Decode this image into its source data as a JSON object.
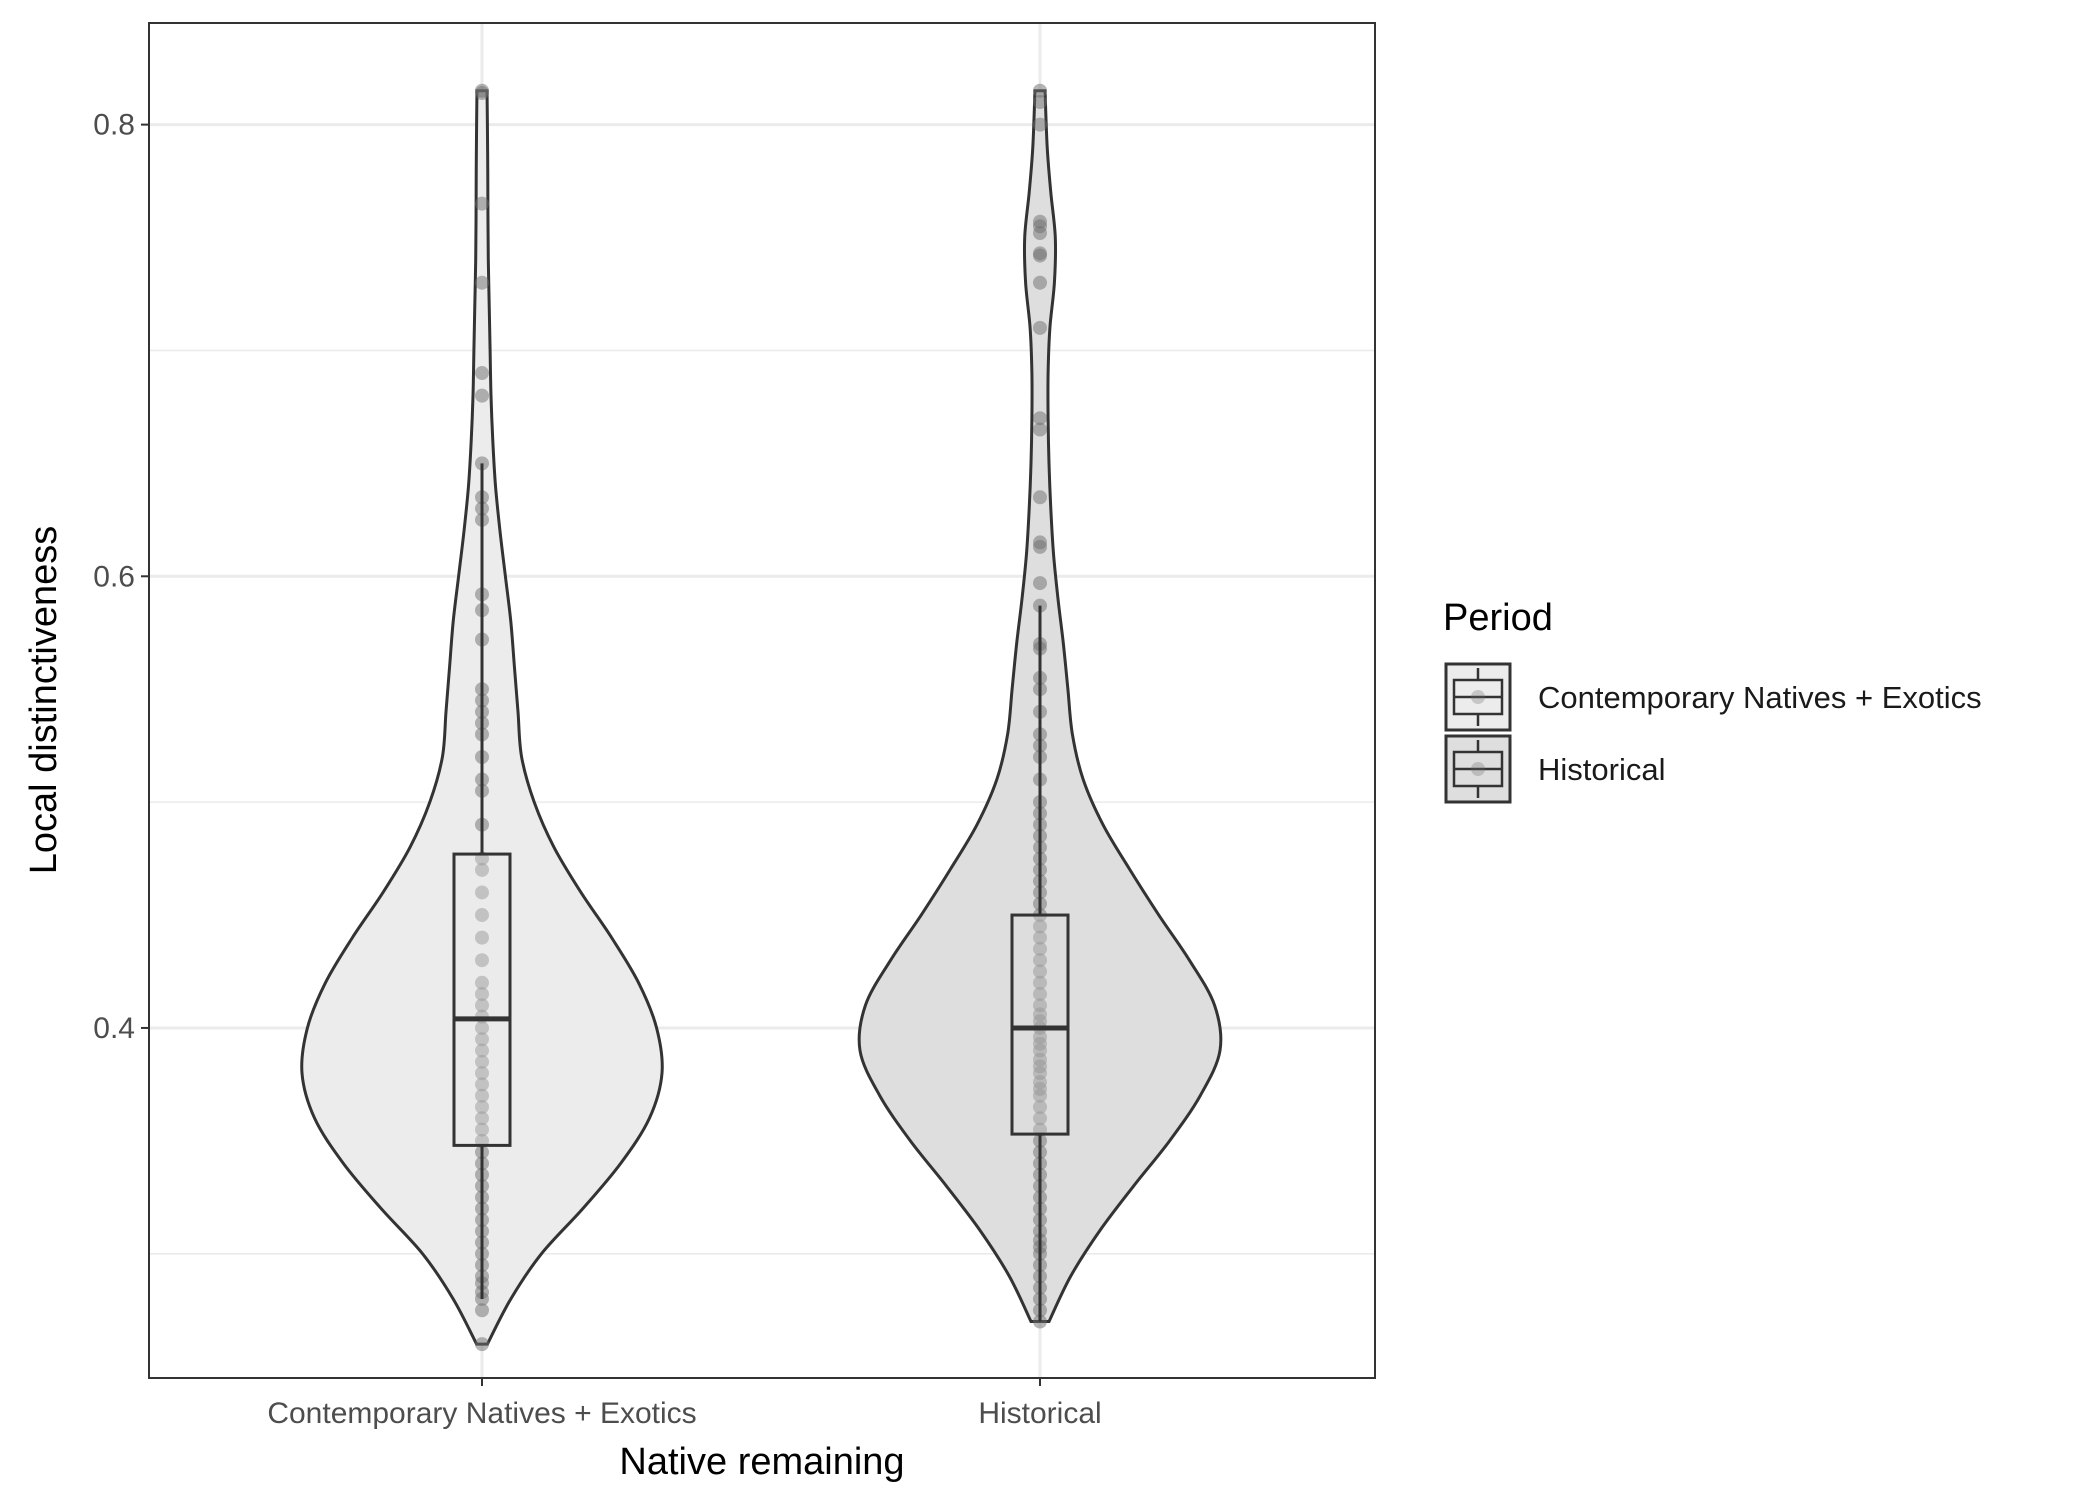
{
  "chart_data": {
    "type": "violin",
    "xlabel": "Native remaining",
    "ylabel": "Local distinctiveness",
    "ylim": [
      0.245,
      0.845
    ],
    "yticks": [
      0.4,
      0.6,
      0.8
    ],
    "ytick_labels": [
      "0.4",
      "0.6",
      "0.8"
    ],
    "grid": true,
    "categories": [
      "Contemporary Natives + Exotics",
      "Historical"
    ],
    "legend": {
      "title": "Period",
      "position": "right",
      "entries": [
        {
          "label": "Contemporary Natives + Exotics",
          "fill": "#ececec"
        },
        {
          "label": "Historical",
          "fill": "#dedede"
        }
      ]
    },
    "colors": {
      "violin_outline": "#333333",
      "points": "#6e6e6e",
      "panel_border": "#333333",
      "grid": "#ebebeb"
    },
    "series": [
      {
        "category": "Contemporary Natives + Exotics",
        "fill": "#ececec",
        "violin_profile": [
          [
            0.26,
            0.03
          ],
          [
            0.28,
            0.16
          ],
          [
            0.3,
            0.33
          ],
          [
            0.32,
            0.56
          ],
          [
            0.34,
            0.77
          ],
          [
            0.36,
            0.93
          ],
          [
            0.38,
            1.0
          ],
          [
            0.4,
            0.97
          ],
          [
            0.42,
            0.87
          ],
          [
            0.44,
            0.72
          ],
          [
            0.46,
            0.55
          ],
          [
            0.48,
            0.4
          ],
          [
            0.5,
            0.29
          ],
          [
            0.52,
            0.22
          ],
          [
            0.54,
            0.2
          ],
          [
            0.56,
            0.18
          ],
          [
            0.58,
            0.16
          ],
          [
            0.6,
            0.13
          ],
          [
            0.62,
            0.1
          ],
          [
            0.64,
            0.075
          ],
          [
            0.66,
            0.06
          ],
          [
            0.68,
            0.05
          ],
          [
            0.7,
            0.045
          ],
          [
            0.72,
            0.04
          ],
          [
            0.74,
            0.035
          ],
          [
            0.76,
            0.033
          ],
          [
            0.78,
            0.032
          ],
          [
            0.8,
            0.03
          ],
          [
            0.815,
            0.028
          ]
        ],
        "box": {
          "min": 0.28,
          "q1": 0.348,
          "median": 0.404,
          "q3": 0.477,
          "max": 0.65
        },
        "points": [
          0.26,
          0.275,
          0.28,
          0.283,
          0.287,
          0.29,
          0.295,
          0.3,
          0.305,
          0.31,
          0.315,
          0.32,
          0.325,
          0.33,
          0.335,
          0.34,
          0.345,
          0.35,
          0.355,
          0.36,
          0.365,
          0.37,
          0.375,
          0.38,
          0.385,
          0.39,
          0.395,
          0.4,
          0.405,
          0.41,
          0.415,
          0.42,
          0.43,
          0.44,
          0.45,
          0.46,
          0.47,
          0.475,
          0.49,
          0.505,
          0.51,
          0.52,
          0.53,
          0.535,
          0.54,
          0.545,
          0.55,
          0.572,
          0.585,
          0.592,
          0.625,
          0.63,
          0.635,
          0.65,
          0.68,
          0.69,
          0.73,
          0.765,
          0.814,
          0.815
        ]
      },
      {
        "category": "Historical",
        "fill": "#dedede",
        "violin_profile": [
          [
            0.27,
            0.05
          ],
          [
            0.29,
            0.17
          ],
          [
            0.31,
            0.33
          ],
          [
            0.33,
            0.52
          ],
          [
            0.35,
            0.72
          ],
          [
            0.37,
            0.89
          ],
          [
            0.39,
            1.0
          ],
          [
            0.41,
            0.97
          ],
          [
            0.43,
            0.83
          ],
          [
            0.45,
            0.66
          ],
          [
            0.47,
            0.5
          ],
          [
            0.49,
            0.35
          ],
          [
            0.51,
            0.24
          ],
          [
            0.53,
            0.18
          ],
          [
            0.55,
            0.155
          ],
          [
            0.57,
            0.13
          ],
          [
            0.59,
            0.1
          ],
          [
            0.61,
            0.075
          ],
          [
            0.63,
            0.06
          ],
          [
            0.65,
            0.05
          ],
          [
            0.67,
            0.045
          ],
          [
            0.69,
            0.045
          ],
          [
            0.71,
            0.055
          ],
          [
            0.73,
            0.08
          ],
          [
            0.75,
            0.085
          ],
          [
            0.77,
            0.06
          ],
          [
            0.79,
            0.04
          ],
          [
            0.815,
            0.028
          ]
        ],
        "box": {
          "min": 0.27,
          "q1": 0.353,
          "median": 0.4,
          "q3": 0.45,
          "max": 0.587
        },
        "points": [
          0.27,
          0.275,
          0.28,
          0.285,
          0.29,
          0.295,
          0.3,
          0.303,
          0.306,
          0.31,
          0.315,
          0.32,
          0.325,
          0.33,
          0.335,
          0.34,
          0.345,
          0.35,
          0.355,
          0.36,
          0.365,
          0.37,
          0.373,
          0.376,
          0.38,
          0.383,
          0.386,
          0.39,
          0.393,
          0.396,
          0.4,
          0.403,
          0.406,
          0.41,
          0.415,
          0.42,
          0.425,
          0.43,
          0.435,
          0.44,
          0.445,
          0.45,
          0.455,
          0.46,
          0.465,
          0.47,
          0.475,
          0.48,
          0.485,
          0.49,
          0.495,
          0.5,
          0.51,
          0.52,
          0.525,
          0.53,
          0.54,
          0.55,
          0.555,
          0.568,
          0.57,
          0.587,
          0.597,
          0.613,
          0.615,
          0.635,
          0.665,
          0.67,
          0.71,
          0.73,
          0.742,
          0.743,
          0.752,
          0.755,
          0.757,
          0.8,
          0.81,
          0.815
        ]
      }
    ]
  }
}
